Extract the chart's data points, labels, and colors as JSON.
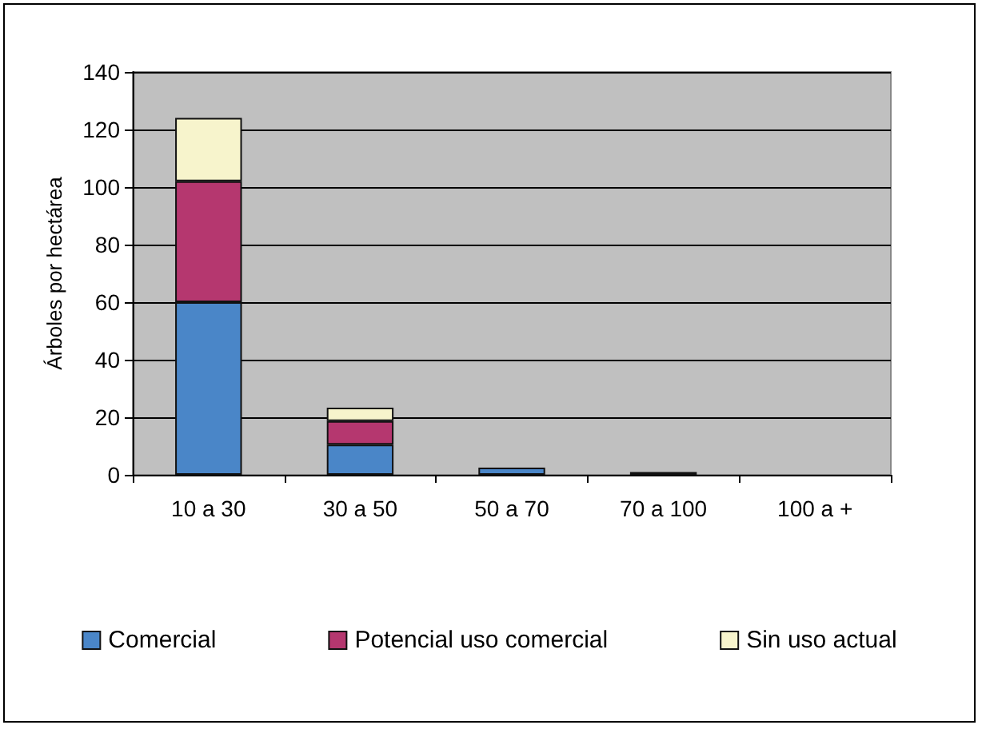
{
  "chart_data": {
    "type": "bar",
    "ylabel": "Árboles por hectárea",
    "categories": [
      "10 a 30",
      "30 a 50",
      "50 a 70",
      "70 a 100",
      "100 a +"
    ],
    "stacked": true,
    "series": [
      {
        "name": "Comercial",
        "color": "#4a86c8",
        "values": [
          60,
          10.5,
          2.5,
          1,
          0
        ]
      },
      {
        "name": "Potencial uso comercial",
        "color": "#b5376f",
        "values": [
          42,
          8.2,
          0,
          0,
          0
        ]
      },
      {
        "name": "Sin uso actual",
        "color": "#f7f4cc",
        "values": [
          22,
          4.6,
          0,
          0,
          0
        ]
      }
    ],
    "ylim": [
      0,
      140
    ],
    "yticks": [
      0,
      20,
      40,
      60,
      80,
      100,
      120,
      140
    ],
    "grid": "y",
    "legend": "bottom"
  }
}
